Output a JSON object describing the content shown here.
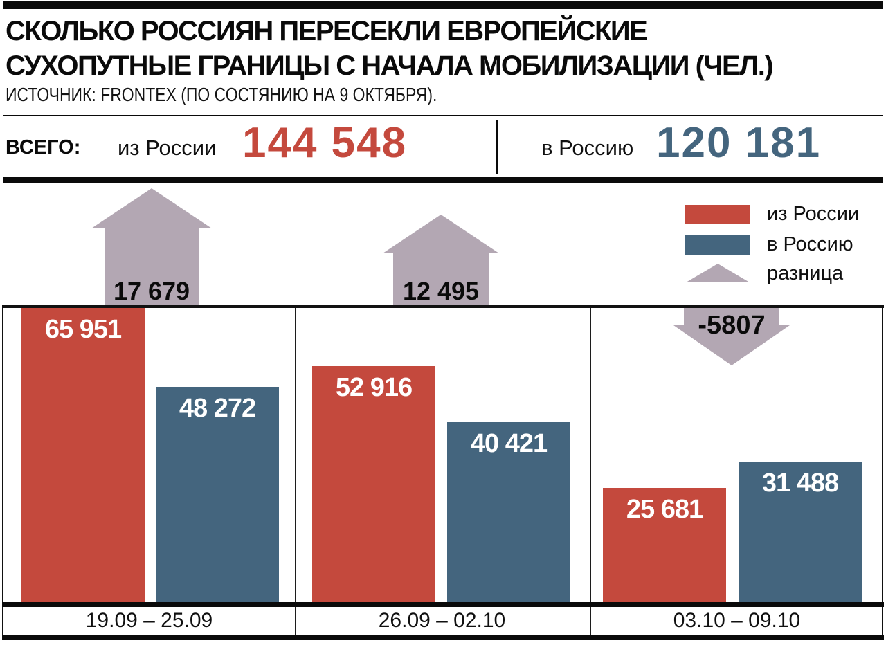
{
  "header": {
    "title_line1": "СКОЛЬКО РОССИЯН ПЕРЕСЕКЛИ ЕВРОПЕЙСКИЕ",
    "title_line2": "СУХОПУТНЫЕ ГРАНИЦЫ С НАЧАЛА МОБИЛИЗАЦИИ (ЧЕЛ.)",
    "source": "ИСТОЧНИК: FRONTEX (ПО СОСТЯНИЮ НА 9 ОКТЯБРЯ)."
  },
  "totals": {
    "label": "ВСЕГО:",
    "out_label": "из России",
    "out_value": "144 548",
    "in_label": "в Россию",
    "in_value": "120 181"
  },
  "legend": {
    "out": "из России",
    "in": "в Россию",
    "diff": "разница"
  },
  "colors": {
    "out_red": "#c4493d",
    "in_blue": "#44657e",
    "diff_mauve": "#b3a7b3",
    "frame_black": "#0a0a0a",
    "bar_label_white": "#ffffff"
  },
  "chart_data": {
    "type": "bar",
    "title": "СКОЛЬКО РОССИЯН ПЕРЕСЕКЛИ ЕВРОПЕЙСКИЕ СУХОПУТНЫЕ ГРАНИЦЫ С НАЧАЛА МОБИЛИЗАЦИИ (ЧЕЛ.)",
    "subtitle": "ИСТОЧНИК: FRONTEX (ПО СОСТЯНИЮ НА 9 ОКТЯБРЯ).",
    "categories": [
      "19.09 – 25.09",
      "26.09 – 02.10",
      "03.10 – 09.10"
    ],
    "series": [
      {
        "name": "из России",
        "color": "#c4493d",
        "values": [
          65951,
          52916,
          25681
        ],
        "labels": [
          "65 951",
          "52 916",
          "25 681"
        ]
      },
      {
        "name": "в Россию",
        "color": "#44657e",
        "values": [
          48272,
          40421,
          31488
        ],
        "labels": [
          "48 272",
          "40 421",
          "31 488"
        ]
      }
    ],
    "difference": {
      "name": "разница",
      "color": "#b3a7b3",
      "values": [
        17679,
        12495,
        -5807
      ],
      "labels": [
        "17 679",
        "12 495",
        "-5807"
      ]
    },
    "totals": {
      "out": 144548,
      "in": 120181
    },
    "ylim": [
      0,
      65951
    ],
    "grid": false,
    "legend_position": "top-right"
  }
}
